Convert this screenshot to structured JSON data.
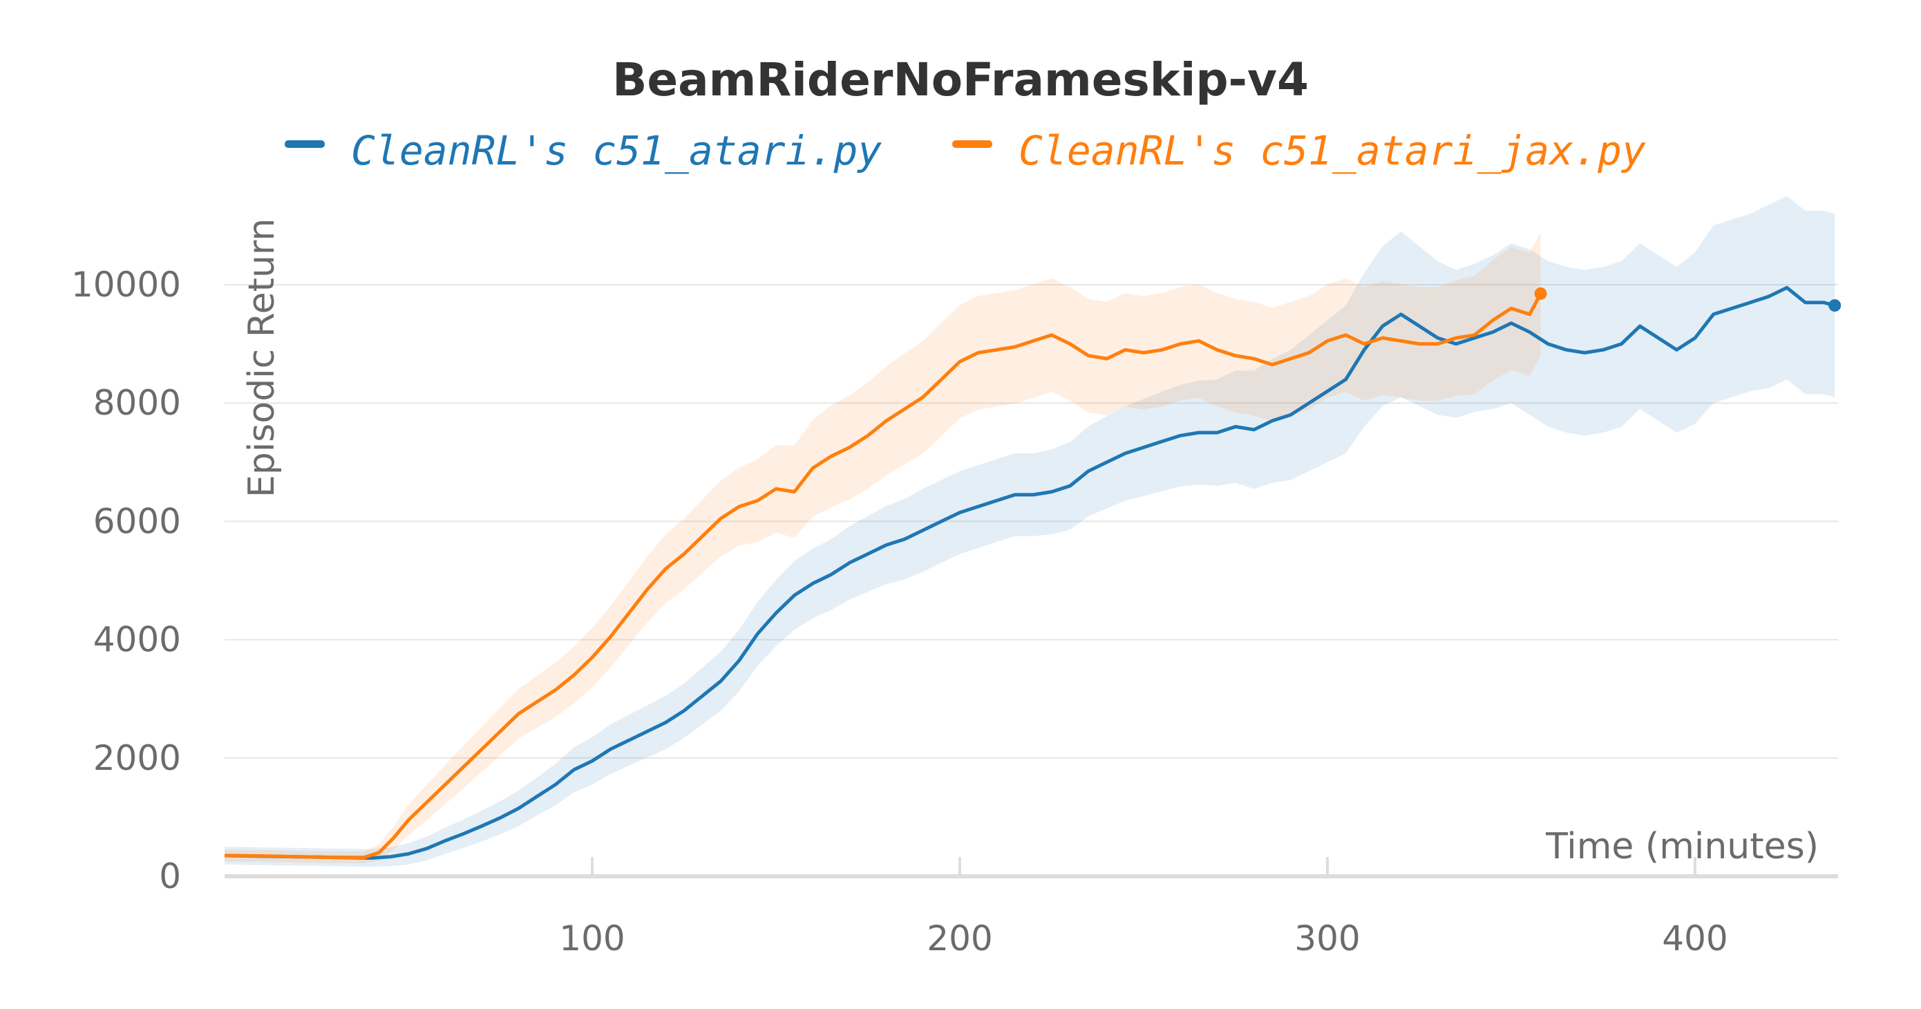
{
  "chart_data": {
    "type": "line",
    "title": "BeamRiderNoFrameskip-v4",
    "xlabel": "Time (minutes)",
    "ylabel": "Episodic Return",
    "xlim": [
      0,
      440
    ],
    "ylim": [
      0,
      11500
    ],
    "x_ticks": [
      100,
      200,
      300,
      400
    ],
    "y_ticks": [
      0,
      2000,
      4000,
      6000,
      8000,
      10000
    ],
    "grid": true,
    "legend_position": "top",
    "series": [
      {
        "name": "CleanRL's c51_atari.py",
        "color": "#1f77b4",
        "x": [
          0,
          10,
          20,
          30,
          40,
          45,
          50,
          55,
          60,
          65,
          70,
          75,
          80,
          85,
          90,
          95,
          100,
          105,
          110,
          115,
          120,
          125,
          130,
          135,
          140,
          145,
          150,
          155,
          160,
          165,
          170,
          175,
          180,
          185,
          190,
          195,
          200,
          205,
          210,
          215,
          220,
          225,
          230,
          235,
          240,
          245,
          250,
          255,
          260,
          265,
          270,
          275,
          280,
          285,
          290,
          295,
          300,
          305,
          310,
          315,
          320,
          325,
          330,
          335,
          340,
          345,
          350,
          355,
          360,
          365,
          370,
          375,
          380,
          385,
          390,
          395,
          400,
          405,
          410,
          415,
          420,
          425,
          430,
          435,
          438
        ],
        "y": [
          350,
          340,
          330,
          320,
          310,
          330,
          380,
          470,
          600,
          720,
          850,
          990,
          1150,
          1350,
          1550,
          1800,
          1950,
          2150,
          2300,
          2450,
          2600,
          2800,
          3050,
          3300,
          3650,
          4100,
          4450,
          4750,
          4950,
          5100,
          5300,
          5450,
          5600,
          5700,
          5850,
          6000,
          6150,
          6250,
          6350,
          6450,
          6450,
          6500,
          6600,
          6850,
          7000,
          7150,
          7250,
          7350,
          7450,
          7500,
          7500,
          7600,
          7550,
          7700,
          7800,
          8000,
          8200,
          8400,
          8900,
          9300,
          9500,
          9300,
          9100,
          9000,
          9100,
          9200,
          9350,
          9200,
          9000,
          8900,
          8850,
          8900,
          9000,
          9300,
          9100,
          8900,
          9100,
          9500,
          9600,
          9700,
          9800,
          9950,
          9700,
          9700,
          9650
        ],
        "band": [
          150,
          150,
          150,
          150,
          150,
          160,
          180,
          200,
          220,
          240,
          260,
          280,
          300,
          320,
          350,
          380,
          400,
          420,
          430,
          440,
          450,
          460,
          480,
          500,
          520,
          540,
          560,
          580,
          590,
          600,
          620,
          640,
          660,
          680,
          700,
          700,
          700,
          700,
          700,
          700,
          700,
          720,
          740,
          760,
          780,
          800,
          820,
          840,
          860,
          880,
          900,
          950,
          1000,
          1050,
          1100,
          1150,
          1200,
          1250,
          1300,
          1350,
          1400,
          1350,
          1300,
          1250,
          1250,
          1300,
          1350,
          1400,
          1400,
          1400,
          1400,
          1400,
          1400,
          1400,
          1400,
          1400,
          1450,
          1500,
          1500,
          1500,
          1550,
          1550,
          1550,
          1550,
          1550
        ]
      },
      {
        "name": "CleanRL's c51_atari_jax.py",
        "color": "#ff7f0e",
        "x": [
          0,
          10,
          20,
          30,
          38,
          42,
          46,
          50,
          55,
          60,
          65,
          70,
          75,
          80,
          85,
          90,
          95,
          100,
          105,
          110,
          115,
          120,
          125,
          130,
          135,
          140,
          145,
          150,
          155,
          160,
          165,
          170,
          175,
          180,
          185,
          190,
          195,
          200,
          205,
          210,
          215,
          220,
          225,
          230,
          235,
          240,
          245,
          250,
          255,
          260,
          265,
          270,
          275,
          280,
          285,
          290,
          295,
          300,
          305,
          310,
          315,
          320,
          325,
          330,
          335,
          340,
          345,
          350,
          355,
          358
        ],
        "y": [
          350,
          345,
          330,
          320,
          320,
          400,
          650,
          950,
          1250,
          1550,
          1850,
          2150,
          2450,
          2750,
          2950,
          3150,
          3400,
          3700,
          4050,
          4450,
          4850,
          5200,
          5450,
          5750,
          6050,
          6250,
          6350,
          6550,
          6500,
          6900,
          7100,
          7250,
          7450,
          7700,
          7900,
          8100,
          8400,
          8700,
          8850,
          8900,
          8950,
          9050,
          9150,
          9000,
          8800,
          8750,
          8900,
          8850,
          8900,
          9000,
          9050,
          8900,
          8800,
          8750,
          8650,
          8750,
          8850,
          9050,
          9150,
          9000,
          9100,
          9050,
          9000,
          9000,
          9100,
          9150,
          9400,
          9600,
          9500,
          9850
        ],
        "band": [
          100,
          100,
          100,
          100,
          100,
          140,
          200,
          260,
          300,
          330,
          360,
          380,
          400,
          420,
          440,
          460,
          480,
          500,
          520,
          540,
          560,
          580,
          600,
          620,
          640,
          660,
          700,
          740,
          780,
          820,
          860,
          880,
          900,
          920,
          940,
          950,
          960,
          960,
          960,
          960,
          960,
          960,
          960,
          960,
          960,
          960,
          960,
          960,
          960,
          960,
          960,
          960,
          960,
          960,
          960,
          960,
          960,
          960,
          960,
          960,
          960,
          960,
          960,
          960,
          980,
          1000,
          1020,
          1040,
          1040,
          1040
        ]
      }
    ]
  }
}
